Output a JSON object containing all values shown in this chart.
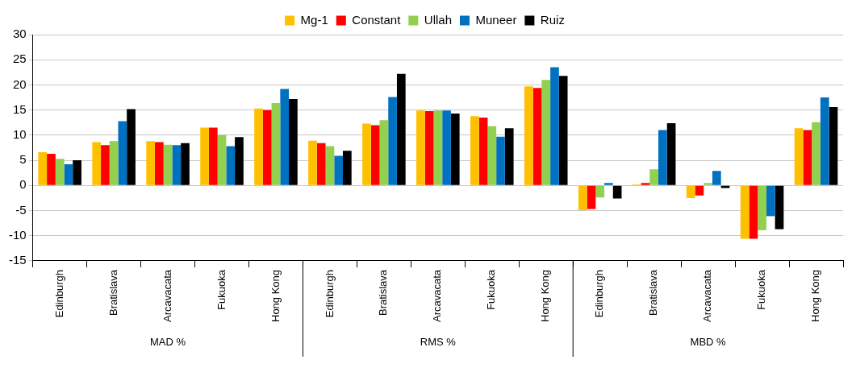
{
  "chart_data": {
    "type": "bar",
    "categories": [
      "Edinburgh",
      "Bratislava",
      "Arcavacata",
      "Fukuoka",
      "Hong Kong",
      "Edinburgh",
      "Bratislava",
      "Arcavacata",
      "Fukuoka",
      "Hong Kong",
      "Edinburgh",
      "Bratislava",
      "Arcavacata",
      "Fukuoka",
      "Hong Kong"
    ],
    "series": [
      {
        "name": "Mg-1",
        "color": "#ffc000",
        "values": [
          6.6,
          8.6,
          8.8,
          11.5,
          15.3,
          8.9,
          12.3,
          14.9,
          13.8,
          19.7,
          -4.9,
          0.2,
          -2.5,
          -10.6,
          11.4
        ]
      },
      {
        "name": "Constant",
        "color": "#ff0000",
        "values": [
          6.3,
          8.0,
          8.6,
          11.5,
          15.0,
          8.4,
          12.0,
          14.8,
          13.5,
          19.4,
          -4.7,
          0.5,
          -2.0,
          -10.6,
          11.0
        ]
      },
      {
        "name": "Ullah",
        "color": "#92d050",
        "values": [
          5.3,
          8.8,
          8.1,
          10.0,
          16.4,
          7.8,
          13.0,
          14.9,
          11.8,
          21.0,
          -2.4,
          3.2,
          0.5,
          -8.9,
          12.6
        ]
      },
      {
        "name": "Muneer",
        "color": "#0070c0",
        "values": [
          4.2,
          12.8,
          8.0,
          7.8,
          19.2,
          5.9,
          17.6,
          14.9,
          9.7,
          23.5,
          0.5,
          11.0,
          2.9,
          -6.1,
          17.5
        ]
      },
      {
        "name": "Ruiz",
        "color": "#000000",
        "values": [
          5.0,
          15.2,
          8.4,
          9.6,
          17.2,
          6.9,
          22.2,
          14.3,
          11.4,
          21.8,
          -2.6,
          12.4,
          -0.5,
          -8.7,
          15.6
        ]
      }
    ],
    "ylim": [
      -15,
      30
    ],
    "yticks": [
      -15,
      -10,
      -5,
      0,
      5,
      10,
      15,
      20,
      25,
      30
    ],
    "grid": "y",
    "legend": "top",
    "annotations": [
      "MAD %",
      "RMS %",
      "MBD %"
    ]
  }
}
